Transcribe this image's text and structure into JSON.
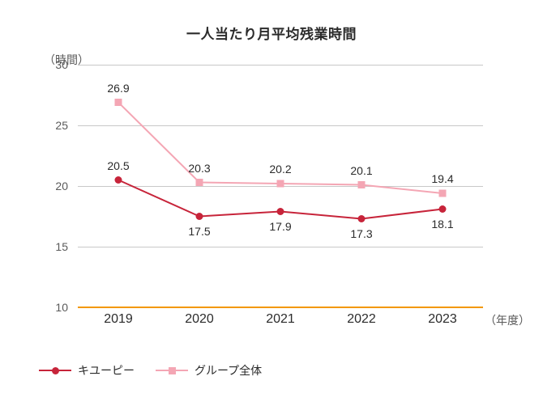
{
  "chart": {
    "type": "line",
    "title": "一人当たり月平均残業時間",
    "y_unit_label": "（時間）",
    "x_unit_label": "（年度）",
    "background_color": "#ffffff",
    "grid_color": "#c8c8c8",
    "baseline_color": "#f39800",
    "text_color": "#2b2b2b",
    "muted_text_color": "#5a5a5a",
    "title_fontsize": 17,
    "label_fontsize": 14,
    "xtick_fontsize": 16,
    "ylim": [
      10,
      30
    ],
    "ytick_step": 5,
    "yticks": [
      30,
      25,
      20,
      15,
      10
    ],
    "categories": [
      "2019",
      "2020",
      "2021",
      "2022",
      "2023"
    ],
    "marker_size": 9,
    "line_width": 2,
    "series": [
      {
        "name": "キユーピー",
        "values": [
          20.5,
          17.5,
          17.9,
          17.3,
          18.1
        ],
        "label_positions": [
          "above",
          "below",
          "below",
          "below",
          "below"
        ],
        "color": "#c7243a",
        "line_color": "#c7243a",
        "marker": "circle"
      },
      {
        "name": "グループ全体",
        "values": [
          26.9,
          20.3,
          20.2,
          20.1,
          19.4
        ],
        "label_positions": [
          "above",
          "above",
          "above",
          "above",
          "above"
        ],
        "color": "#f4a6b4",
        "line_color": "#f4a6b4",
        "marker": "square"
      }
    ],
    "legend": {
      "items": [
        {
          "label": "キユーピー",
          "series_index": 0
        },
        {
          "label": "グループ全体",
          "series_index": 1
        }
      ]
    }
  }
}
